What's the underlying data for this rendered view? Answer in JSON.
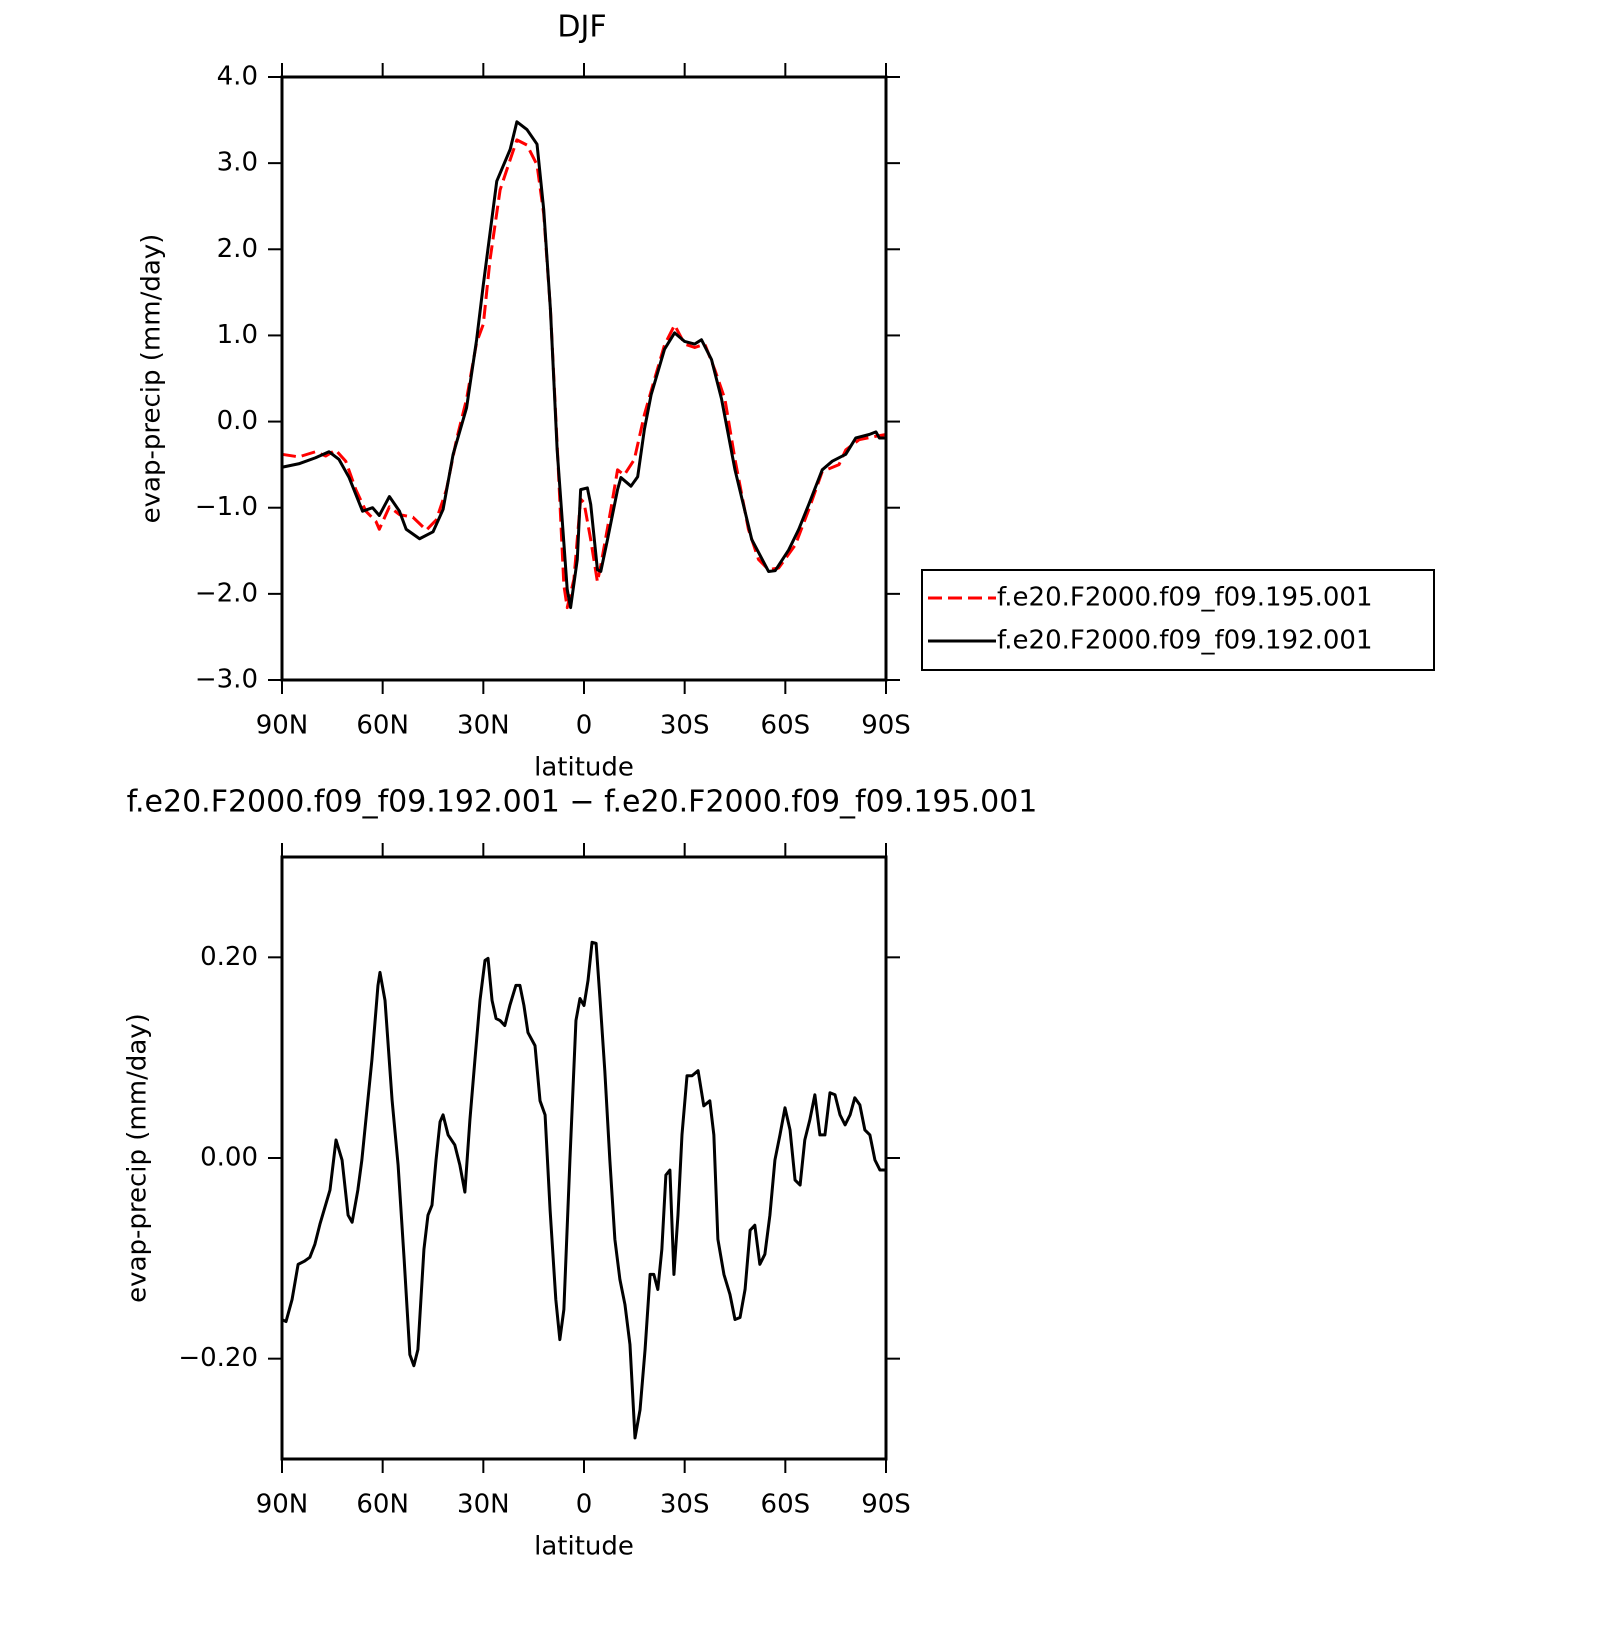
{
  "chart_data": [
    {
      "type": "line",
      "title": "DJF",
      "xlabel": "latitude",
      "ylabel": "evap-precip (mm/day)",
      "xlim": [
        90,
        -90
      ],
      "xticks": [
        {
          "value": 90,
          "label": "90N"
        },
        {
          "value": 60,
          "label": "60N"
        },
        {
          "value": 30,
          "label": "30N"
        },
        0,
        {
          "value": -30,
          "label": "30S"
        },
        {
          "value": -60,
          "label": "60S"
        },
        {
          "value": -90,
          "label": "90S"
        }
      ],
      "ylim": [
        -3,
        4
      ],
      "yticks": [
        {
          "value": 4,
          "label": "4.0"
        },
        {
          "value": 3,
          "label": "3.0"
        },
        {
          "value": 2,
          "label": "2.0"
        },
        {
          "value": 1,
          "label": "1.0"
        },
        {
          "value": 0,
          "label": "0.0"
        },
        {
          "value": -1,
          "label": "−1.0"
        },
        {
          "value": -2,
          "label": "−2.0"
        },
        {
          "value": -3,
          "label": "−3.0"
        }
      ],
      "legend": "right",
      "series": [
        {
          "name": "f.e20.F2000.f09_f09.195.001",
          "color": "#ff0000",
          "line_style": "dashed",
          "x": [
            90,
            85,
            80,
            77,
            74,
            71,
            68,
            65,
            62,
            61,
            58,
            55,
            51,
            47,
            44,
            41,
            38,
            35,
            32,
            30,
            28,
            25,
            22,
            20,
            17,
            14,
            12,
            10,
            8,
            6,
            5,
            3,
            1,
            0,
            -2,
            -4,
            -5,
            -8,
            -10,
            -12,
            -15,
            -18,
            -21,
            -24,
            -27,
            -30,
            -33,
            -36,
            -39,
            -42,
            -45,
            -49,
            -52,
            -55,
            -58,
            -63,
            -67,
            -71,
            -76,
            -78,
            -82,
            -87,
            -90
          ],
          "values": [
            -0.38,
            -0.41,
            -0.35,
            -0.4,
            -0.33,
            -0.46,
            -0.79,
            -1.04,
            -1.16,
            -1.25,
            -0.99,
            -1.08,
            -1.11,
            -1.26,
            -1.14,
            -0.79,
            -0.21,
            0.26,
            0.92,
            1.13,
            1.88,
            2.69,
            3.04,
            3.27,
            3.21,
            2.98,
            2.41,
            1.3,
            -0.27,
            -1.9,
            -2.16,
            -1.83,
            -0.9,
            -0.94,
            -1.37,
            -1.86,
            -1.67,
            -1.02,
            -0.56,
            -0.62,
            -0.44,
            0.08,
            0.49,
            0.89,
            1.12,
            0.9,
            0.86,
            0.9,
            0.6,
            0.26,
            -0.44,
            -1.25,
            -1.6,
            -1.72,
            -1.7,
            -1.43,
            -1.02,
            -0.58,
            -0.5,
            -0.33,
            -0.21,
            -0.17,
            -0.15
          ]
        },
        {
          "name": "f.e20.F2000.f09_f09.192.001",
          "color": "#000000",
          "line_style": "solid",
          "x": [
            90,
            85,
            80,
            76,
            73,
            70,
            66,
            63,
            61,
            58,
            55,
            53,
            49,
            45,
            42,
            39,
            35,
            32,
            30,
            26,
            22,
            20,
            17,
            14,
            12,
            10,
            8,
            5,
            4,
            2,
            1,
            -1,
            -2,
            -4,
            -5,
            -7,
            -10,
            -11,
            -14,
            -16,
            -18,
            -20,
            -24,
            -27,
            -30,
            -33,
            -35,
            -38,
            -41,
            -45,
            -50,
            -55,
            -57,
            -61,
            -64,
            -67,
            -71,
            -74,
            -78,
            -81,
            -85,
            -87,
            -88,
            -90
          ],
          "values": [
            -0.53,
            -0.49,
            -0.42,
            -0.35,
            -0.44,
            -0.65,
            -1.04,
            -1.0,
            -1.09,
            -0.87,
            -1.04,
            -1.25,
            -1.36,
            -1.28,
            -1.02,
            -0.38,
            0.16,
            0.95,
            1.59,
            2.79,
            3.16,
            3.48,
            3.39,
            3.22,
            2.46,
            1.3,
            -0.33,
            -1.95,
            -2.16,
            -1.6,
            -0.79,
            -0.77,
            -0.96,
            -1.72,
            -1.74,
            -1.37,
            -0.79,
            -0.65,
            -0.75,
            -0.64,
            -0.09,
            0.31,
            0.84,
            1.03,
            0.93,
            0.9,
            0.95,
            0.72,
            0.26,
            -0.56,
            -1.37,
            -1.74,
            -1.73,
            -1.49,
            -1.25,
            -0.96,
            -0.56,
            -0.46,
            -0.38,
            -0.19,
            -0.15,
            -0.12,
            -0.19,
            -0.19
          ]
        }
      ]
    },
    {
      "type": "line",
      "title": "f.e20.F2000.f09_f09.192.001 − f.e20.F2000.f09_f09.195.001",
      "xlabel": "latitude",
      "ylabel": "evap-precip (mm/day)",
      "xlim": [
        90,
        -90
      ],
      "xticks": [
        {
          "value": 90,
          "label": "90N"
        },
        {
          "value": 60,
          "label": "60N"
        },
        {
          "value": 30,
          "label": "30N"
        },
        0,
        {
          "value": -30,
          "label": "30S"
        },
        {
          "value": -60,
          "label": "60S"
        },
        {
          "value": -90,
          "label": "90S"
        }
      ],
      "ylim": [
        -0.3,
        0.3
      ],
      "yticks": [
        {
          "value": 0.2,
          "label": "0.20"
        },
        {
          "value": 0,
          "label": "0.00"
        },
        {
          "value": -0.2,
          "label": "−0.20"
        }
      ],
      "series": [
        {
          "color": "#000000",
          "line_style": "solid",
          "x": [
            90.0,
            88.8,
            87.0,
            85.2,
            83.4,
            81.7,
            80.2,
            78.7,
            75.7,
            73.9,
            72.1,
            70.3,
            69.1,
            67.4,
            66.2,
            64.4,
            63.2,
            61.4,
            60.8,
            59.3,
            57.2,
            55.4,
            53.6,
            51.9,
            50.7,
            49.5,
            47.7,
            46.5,
            45.3,
            44.1,
            42.9,
            42.0,
            40.5,
            38.5,
            37.0,
            35.5,
            34.0,
            32.5,
            31.0,
            29.5,
            28.6,
            27.4,
            26.2,
            25.0,
            23.6,
            22.1,
            20.3,
            19.1,
            17.9,
            16.7,
            14.6,
            13.1,
            11.6,
            10.1,
            8.4,
            7.2,
            6.0,
            4.2,
            2.4,
            1.2,
            0.0,
            -1.2,
            -2.4,
            -3.6,
            -4.8,
            -6.2,
            -7.7,
            -9.2,
            -10.7,
            -12.2,
            -13.7,
            -15.2,
            -16.7,
            -18.2,
            -19.7,
            -20.8,
            -22.0,
            -23.2,
            -24.4,
            -25.6,
            -26.8,
            -28.0,
            -29.2,
            -30.7,
            -32.2,
            -34.0,
            -35.7,
            -37.5,
            -38.7,
            -39.9,
            -41.7,
            -43.5,
            -45.0,
            -46.5,
            -48.0,
            -49.5,
            -50.9,
            -52.4,
            -53.9,
            -55.4,
            -56.9,
            -58.4,
            -59.9,
            -61.4,
            -62.9,
            -64.4,
            -65.8,
            -67.3,
            -68.8,
            -70.3,
            -71.8,
            -73.3,
            -74.8,
            -76.3,
            -77.8,
            -79.3,
            -80.7,
            -82.2,
            -83.7,
            -85.2,
            -86.7,
            -88.2,
            -90.0
          ],
          "values": [
            -0.161,
            -0.163,
            -0.141,
            -0.106,
            -0.103,
            -0.099,
            -0.086,
            -0.066,
            -0.032,
            0.018,
            -0.002,
            -0.057,
            -0.064,
            -0.032,
            -0.002,
            0.058,
            0.098,
            0.172,
            0.185,
            0.157,
            0.058,
            -0.007,
            -0.101,
            -0.196,
            -0.207,
            -0.191,
            -0.091,
            -0.057,
            -0.047,
            -0.002,
            0.036,
            0.043,
            0.023,
            0.013,
            -0.007,
            -0.034,
            0.038,
            0.098,
            0.157,
            0.197,
            0.199,
            0.157,
            0.139,
            0.137,
            0.132,
            0.152,
            0.172,
            0.172,
            0.152,
            0.125,
            0.112,
            0.057,
            0.043,
            -0.052,
            -0.141,
            -0.181,
            -0.151,
            -0.002,
            0.137,
            0.159,
            0.152,
            0.177,
            0.215,
            0.214,
            0.157,
            0.087,
            -0.002,
            -0.081,
            -0.121,
            -0.146,
            -0.186,
            -0.279,
            -0.251,
            -0.191,
            -0.116,
            -0.116,
            -0.131,
            -0.091,
            -0.017,
            -0.012,
            -0.116,
            -0.057,
            0.023,
            0.082,
            0.082,
            0.087,
            0.052,
            0.057,
            0.023,
            -0.081,
            -0.116,
            -0.136,
            -0.161,
            -0.159,
            -0.131,
            -0.072,
            -0.067,
            -0.106,
            -0.096,
            -0.057,
            -0.002,
            0.023,
            0.05,
            0.028,
            -0.022,
            -0.027,
            0.018,
            0.038,
            0.063,
            0.023,
            0.023,
            0.065,
            0.063,
            0.043,
            0.033,
            0.043,
            0.06,
            0.053,
            0.028,
            0.023,
            -0.002,
            -0.012,
            -0.012
          ]
        }
      ]
    }
  ]
}
